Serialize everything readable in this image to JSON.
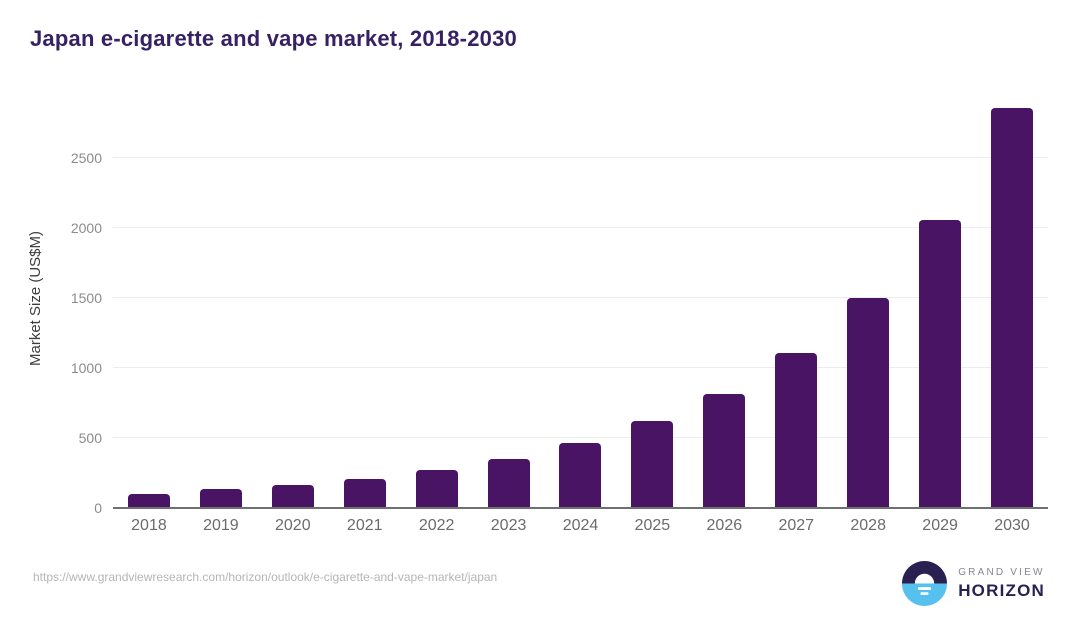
{
  "header": {
    "title": "Japan e-cigarette and vape market, 2018-2030"
  },
  "chart_data": {
    "type": "bar",
    "title": "Japan e-cigarette and vape market, 2018-2030",
    "categories": [
      "2018",
      "2019",
      "2020",
      "2021",
      "2022",
      "2023",
      "2024",
      "2025",
      "2026",
      "2027",
      "2028",
      "2029",
      "2030"
    ],
    "values": [
      100,
      135,
      165,
      210,
      270,
      350,
      465,
      620,
      815,
      1110,
      1500,
      2060,
      2860
    ],
    "xlabel": "",
    "ylabel": "Market Size (US$M)",
    "ylim": [
      0,
      3000
    ],
    "yticks": [
      0,
      500,
      1000,
      1500,
      2000,
      2500
    ],
    "grid": true,
    "legend_position": "none",
    "bar_color": "#4A1464"
  },
  "footer": {
    "source_url": "https://www.grandviewresearch.com/horizon/outlook/e-cigarette-and-vape-market/japan",
    "logo": {
      "line1": "GRAND VIEW",
      "line2": "HORIZON"
    }
  },
  "colors": {
    "bar": "#4A1464",
    "title": "#362163",
    "y_tick_text": "#8c8c8c",
    "x_tick_text": "#6b6b6b",
    "gridline": "#ececec",
    "baseline": "#707070",
    "url_text": "#b5b5b5",
    "logo_navy": "#2a2150",
    "logo_blue": "#56c1ef",
    "logo_gray": "#84878f"
  }
}
